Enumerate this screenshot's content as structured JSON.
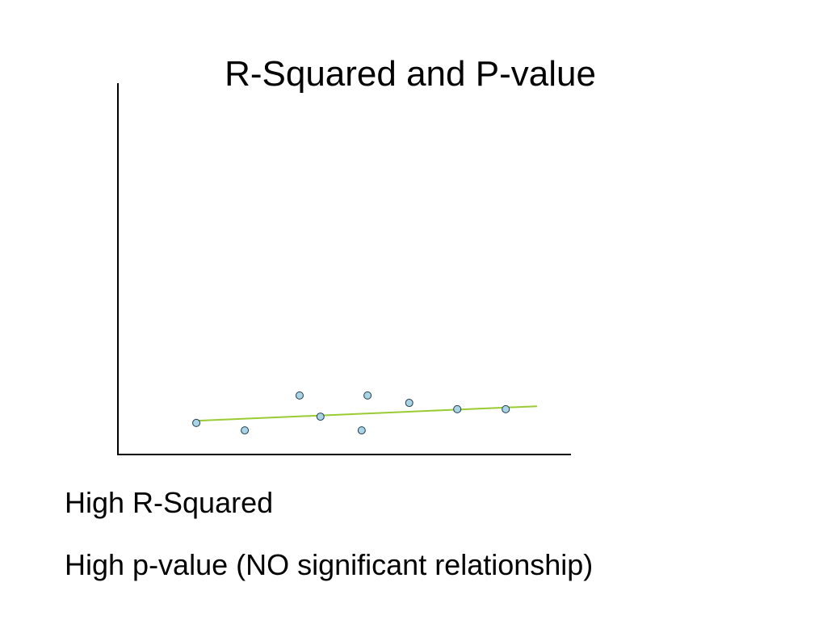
{
  "chart_data": {
    "type": "scatter",
    "title": "R-Squared and P-value",
    "x": [
      17.3,
      28.0,
      40.1,
      44.7,
      53.8,
      55.1,
      64.3,
      74.9,
      85.6
    ],
    "values": [
      8.5,
      6.5,
      15.9,
      10.2,
      6.5,
      15.9,
      13.9,
      12.2,
      12.2
    ],
    "color": "#a9d4e6",
    "trendline": {
      "x": [
        17.6,
        92.5
      ],
      "y": [
        9.1,
        13.0
      ],
      "color": "#99cc33"
    },
    "xlim": [
      0,
      100
    ],
    "ylim": [
      0,
      100
    ],
    "annotations": [
      "High R-Squared",
      "High p-value (NO significant relationship)"
    ]
  }
}
